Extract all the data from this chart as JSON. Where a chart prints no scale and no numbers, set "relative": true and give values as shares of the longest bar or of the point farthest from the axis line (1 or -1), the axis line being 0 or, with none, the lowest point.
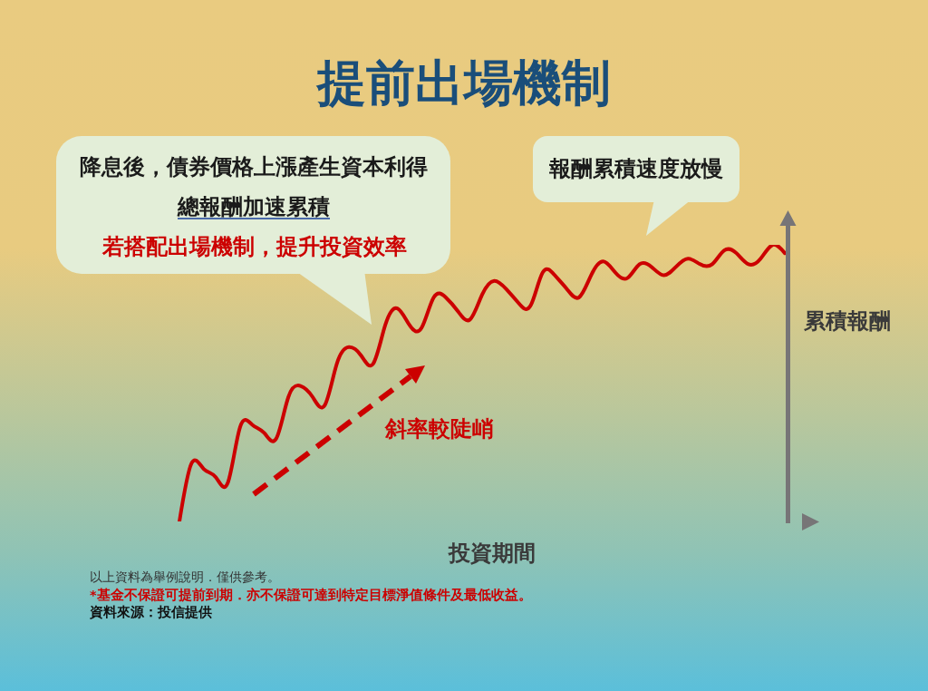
{
  "chart_data": {
    "type": "line",
    "title": "提前出場機制",
    "xlabel": "投資期間",
    "ylabel": "累積報酬",
    "relative": true,
    "line_style": "solid",
    "categories": [
      null,
      null,
      null,
      null,
      null,
      null,
      null,
      null,
      null,
      null,
      null,
      null,
      null,
      null,
      null,
      null,
      null,
      null,
      null,
      null,
      null,
      null,
      null,
      null,
      null,
      null,
      null,
      null,
      null,
      null,
      null,
      null,
      null,
      null,
      null,
      null,
      null,
      null,
      null,
      null,
      null,
      null,
      null,
      null,
      null,
      null,
      null,
      null,
      null,
      null,
      null
    ],
    "series": [
      {
        "color": "#cc0000",
        "values": [
          0,
          0.21,
          0.19,
          0.16,
          0.14,
          0.34,
          0.35,
          0.32,
          0.3,
          0.45,
          0.49,
          0.45,
          0.42,
          0.57,
          0.63,
          0.6,
          0.57,
          0.71,
          0.77,
          0.71,
          0.7,
          0.81,
          0.81,
          0.76,
          0.73,
          0.82,
          0.87,
          0.84,
          0.79,
          0.78,
          0.9,
          0.89,
          0.84,
          0.81,
          0.89,
          0.94,
          0.9,
          0.88,
          0.93,
          0.92,
          0.89,
          0.92,
          0.95,
          0.93,
          0.93,
          0.98,
          0.97,
          0.93,
          0.95,
          1,
          0.97
        ]
      }
    ],
    "annotations": [
      "降息後，債券價格上漲產生資本利得",
      "總報酬加速累積",
      "若搭配出場機制，提升投資效率",
      "報酬累積速度放慢",
      "斜率較陡峭",
      "以上資料為舉例說明．僅供參考。",
      "*基金不保證可提前到期．亦不保證可達到特定目標淨值條件及最低收益。",
      "資料來源：投信提供"
    ]
  }
}
